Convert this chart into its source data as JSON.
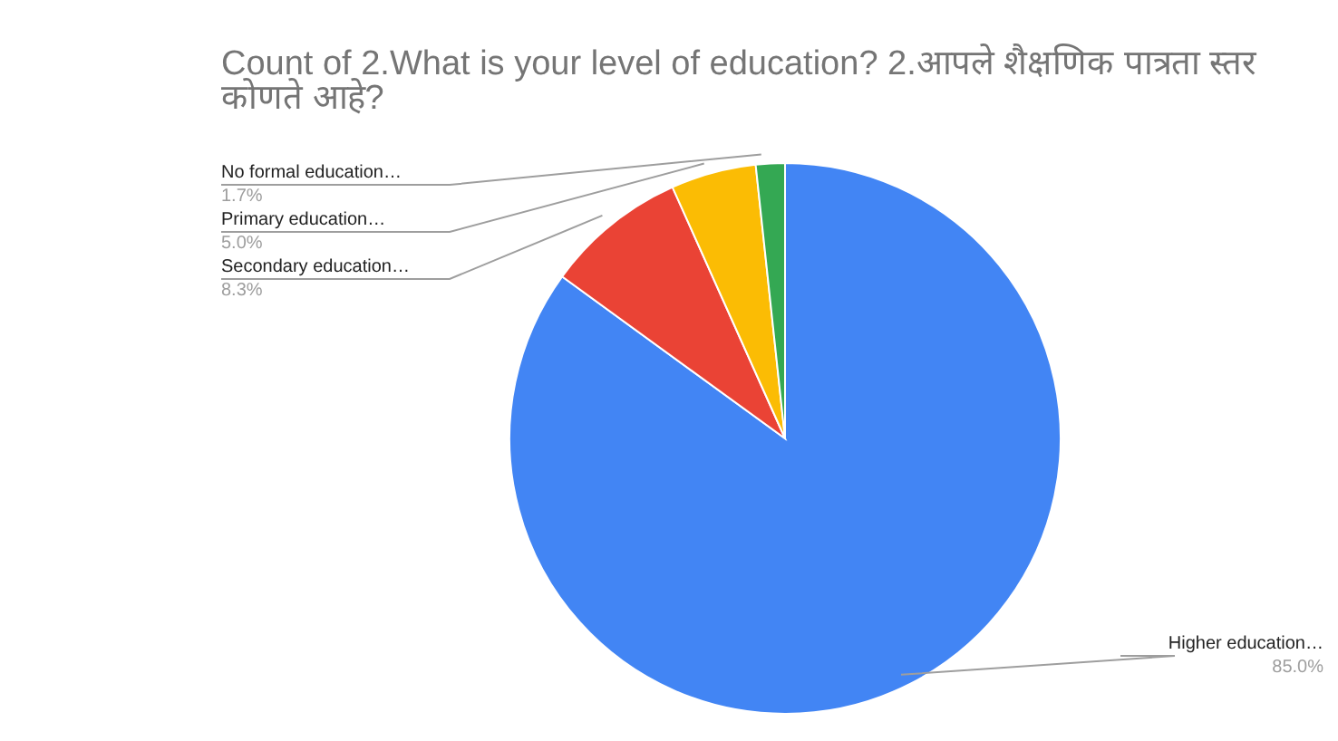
{
  "chart_data": {
    "type": "pie",
    "title": "Count of 2.What is your level of education? 2.आपले शैक्षणिक पात्रता स्तर कोणते आहे?",
    "categories": [
      "Higher education…",
      "Secondary education…",
      "Primary education…",
      "No formal education…"
    ],
    "values": [
      85.0,
      8.3,
      5.0,
      1.7
    ],
    "colors": [
      "#4285f4",
      "#ea4335",
      "#fbbc04",
      "#34a853"
    ],
    "value_labels": [
      "85.0%",
      "8.3%",
      "5.0%",
      "1.7%"
    ]
  }
}
